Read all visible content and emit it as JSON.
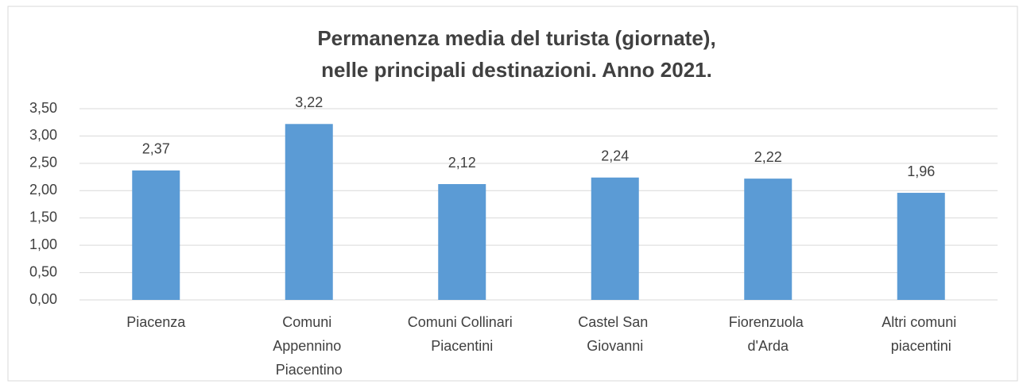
{
  "chart_data": {
    "type": "bar",
    "title": [
      "Permanenza media del turista (giornate),",
      "nelle principali destinazioni. Anno 2021."
    ],
    "categories": [
      "Piacenza",
      "Comuni\nAppennino\nPiacentino",
      "Comuni Collinari\nPiacentini",
      "Castel San\nGiovanni",
      "Fiorenzuola\nd'Arda",
      "Altri comuni\npiacentini"
    ],
    "values": [
      2.37,
      3.22,
      2.12,
      2.24,
      2.22,
      1.96
    ],
    "value_labels": [
      "2,37",
      "3,22",
      "2,12",
      "2,24",
      "2,22",
      "1,96"
    ],
    "color": "#5b9bd5",
    "ylim": [
      0,
      3.5
    ],
    "yticks": [
      {
        "value": 0,
        "label": "0,00"
      },
      {
        "value": 0.5,
        "label": "0,50"
      },
      {
        "value": 1,
        "label": "1,00"
      },
      {
        "value": 1.5,
        "label": "1,50"
      },
      {
        "value": 2,
        "label": "2,00"
      },
      {
        "value": 2.5,
        "label": "2,50"
      },
      {
        "value": 3,
        "label": "3,00"
      },
      {
        "value": 3.5,
        "label": "3,50"
      }
    ],
    "grid": true
  }
}
